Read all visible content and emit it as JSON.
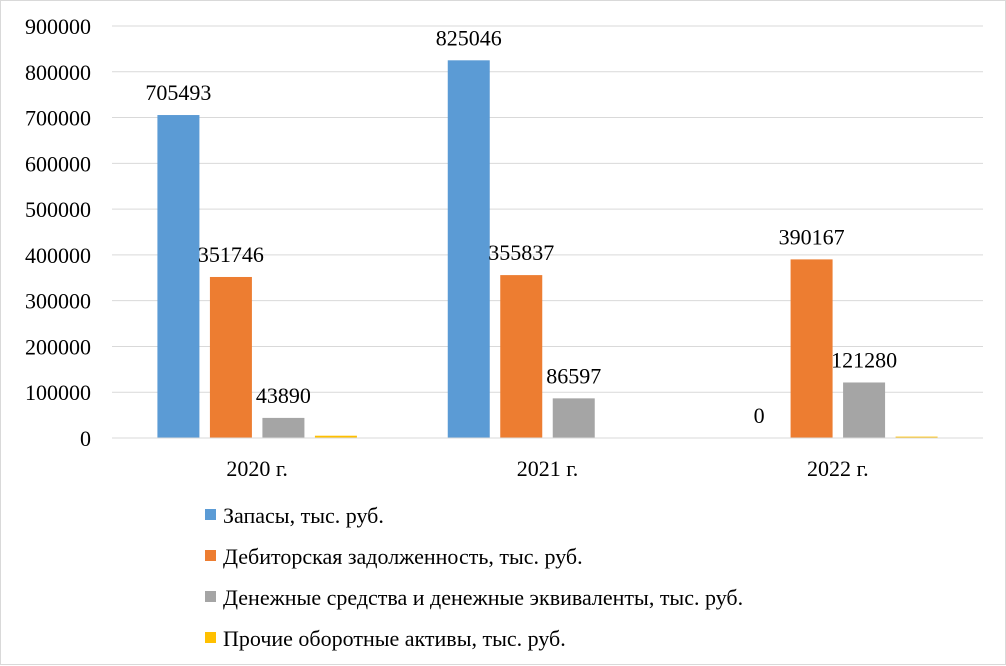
{
  "chart_data": {
    "type": "bar",
    "categories": [
      "2020 г.",
      "2021 г.",
      "2022 г."
    ],
    "series": [
      {
        "name": "Запасы, тыс. руб.",
        "color": "#5b9bd5",
        "values": [
          705493,
          825046,
          0
        ],
        "labels": [
          "705493",
          "825046",
          "0"
        ]
      },
      {
        "name": "Дебиторская задолженность, тыс. руб.",
        "color": "#ed7d31",
        "values": [
          351746,
          355837,
          390167
        ],
        "labels": [
          "351746",
          "355837",
          "390167"
        ]
      },
      {
        "name": "Денежные  средства и денежные эквиваленты, тыс. руб.",
        "color": "#a5a5a5",
        "values": [
          43890,
          86597,
          121280
        ],
        "labels": [
          "43890",
          "86597",
          "121280"
        ]
      },
      {
        "name": "Прочие оборотные активы, тыс. руб.",
        "color": "#ffc000",
        "values": [
          5000,
          0,
          3000
        ],
        "labels": [
          null,
          null,
          null
        ]
      }
    ],
    "ylim": [
      0,
      900000
    ],
    "yticks": [
      0,
      100000,
      200000,
      300000,
      400000,
      500000,
      600000,
      700000,
      800000,
      900000
    ],
    "ytick_labels": [
      "0",
      "100000",
      "200000",
      "300000",
      "400000",
      "500000",
      "600000",
      "700000",
      "800000",
      "900000"
    ],
    "grid": true,
    "legend_position": "bottom"
  }
}
